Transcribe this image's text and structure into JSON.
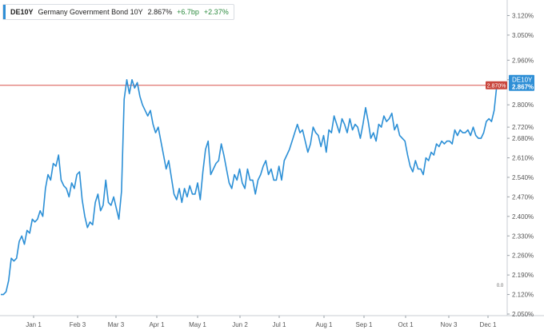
{
  "legend": {
    "symbol": "DE10Y",
    "name": "Germany Government Bond 10Y",
    "last": "2.867%",
    "change_bp": "+6.7bp",
    "change_pct": "+2.37%"
  },
  "price_tag": {
    "symbol": "DE10Y",
    "value": "2.867%"
  },
  "reference_line": {
    "value": 2.87,
    "label": "2.870%",
    "color": "#d9534f"
  },
  "corner_label": "0.0",
  "colors": {
    "series": "#2b8fd6",
    "axis_text": "#555555",
    "tag_bg": "#2f8fd6",
    "ref_tag_bg": "#c9463d"
  },
  "chart_data": {
    "type": "line",
    "title": "",
    "xlabel": "",
    "ylabel": "",
    "ylim": [
      2.05,
      3.15
    ],
    "y_ticks": [
      "3.120%",
      "3.050%",
      "2.960%",
      "2.890%",
      "2.800%",
      "2.720%",
      "2.680%",
      "2.610%",
      "2.540%",
      "2.470%",
      "2.400%",
      "2.330%",
      "2.260%",
      "2.190%",
      "2.120%",
      "2.050%"
    ],
    "x_ticks": [
      "Jan 1",
      "Feb 3",
      "Mar 3",
      "Apr 1",
      "May 1",
      "Jun 2",
      "Jul 1",
      "Aug 1",
      "Sep 1",
      "Oct 1",
      "Nov 3",
      "Dec 1"
    ],
    "series": [
      {
        "name": "DE10Y",
        "values": [
          2.12,
          2.12,
          2.13,
          2.17,
          2.25,
          2.24,
          2.25,
          2.31,
          2.33,
          2.3,
          2.35,
          2.34,
          2.39,
          2.38,
          2.39,
          2.42,
          2.4,
          2.5,
          2.55,
          2.53,
          2.59,
          2.58,
          2.62,
          2.53,
          2.51,
          2.5,
          2.47,
          2.52,
          2.5,
          2.55,
          2.56,
          2.46,
          2.4,
          2.36,
          2.38,
          2.37,
          2.45,
          2.48,
          2.42,
          2.44,
          2.53,
          2.45,
          2.44,
          2.47,
          2.43,
          2.39,
          2.49,
          2.82,
          2.89,
          2.84,
          2.89,
          2.86,
          2.88,
          2.83,
          2.8,
          2.78,
          2.76,
          2.78,
          2.73,
          2.7,
          2.72,
          2.67,
          2.62,
          2.57,
          2.6,
          2.54,
          2.48,
          2.46,
          2.5,
          2.45,
          2.5,
          2.47,
          2.51,
          2.48,
          2.48,
          2.52,
          2.46,
          2.56,
          2.64,
          2.67,
          2.55,
          2.57,
          2.59,
          2.6,
          2.66,
          2.62,
          2.57,
          2.52,
          2.5,
          2.55,
          2.53,
          2.57,
          2.52,
          2.5,
          2.57,
          2.53,
          2.53,
          2.48,
          2.53,
          2.55,
          2.58,
          2.6,
          2.55,
          2.57,
          2.53,
          2.53,
          2.58,
          2.53,
          2.6,
          2.62,
          2.64,
          2.67,
          2.7,
          2.73,
          2.7,
          2.71,
          2.67,
          2.63,
          2.66,
          2.72,
          2.7,
          2.69,
          2.65,
          2.69,
          2.63,
          2.71,
          2.7,
          2.76,
          2.73,
          2.7,
          2.75,
          2.73,
          2.7,
          2.75,
          2.71,
          2.73,
          2.72,
          2.68,
          2.73,
          2.79,
          2.74,
          2.68,
          2.7,
          2.67,
          2.73,
          2.72,
          2.76,
          2.74,
          2.75,
          2.77,
          2.71,
          2.73,
          2.69,
          2.68,
          2.67,
          2.62,
          2.58,
          2.56,
          2.6,
          2.57,
          2.57,
          2.55,
          2.61,
          2.6,
          2.63,
          2.62,
          2.66,
          2.65,
          2.67,
          2.66,
          2.67,
          2.67,
          2.66,
          2.71,
          2.69,
          2.71,
          2.7,
          2.7,
          2.71,
          2.69,
          2.72,
          2.69,
          2.68,
          2.68,
          2.7,
          2.74,
          2.75,
          2.74,
          2.78,
          2.87
        ]
      }
    ],
    "grid": false,
    "legend_position": "top-left"
  }
}
